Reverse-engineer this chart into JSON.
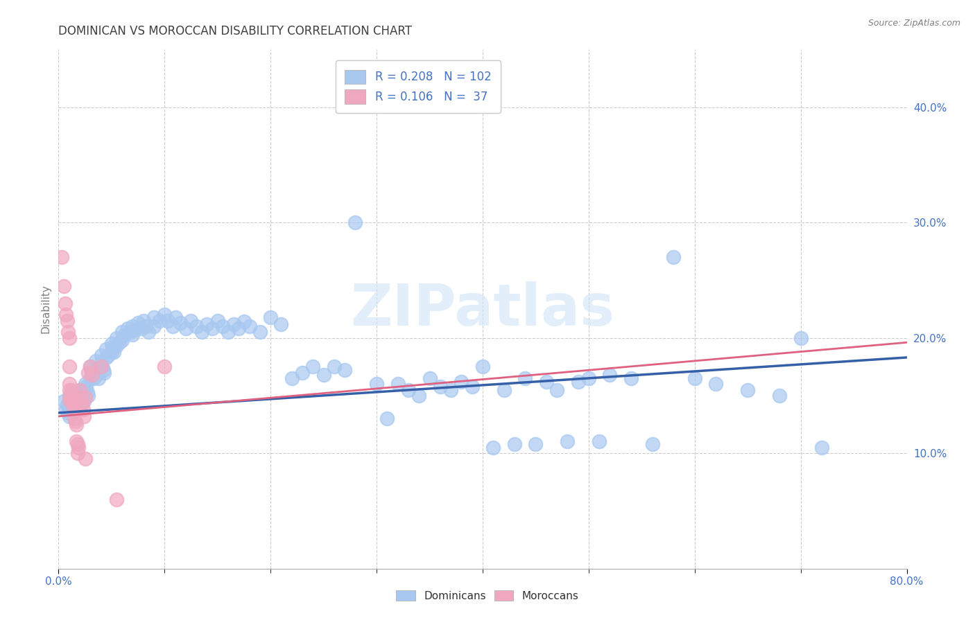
{
  "title": "DOMINICAN VS MOROCCAN DISABILITY CORRELATION CHART",
  "source": "Source: ZipAtlas.com",
  "ylabel": "Disability",
  "watermark": "ZIPatlas",
  "xlim": [
    0.0,
    0.8
  ],
  "ylim": [
    0.0,
    0.45
  ],
  "ytick_vals": [
    0.1,
    0.2,
    0.3,
    0.4
  ],
  "ytick_labels": [
    "10.0%",
    "20.0%",
    "30.0%",
    "40.0%"
  ],
  "dominican_scatter_color": "#a8c8f0",
  "moroccan_scatter_color": "#f0a8c0",
  "dominican_line_color": "#3560a8",
  "moroccan_line_color": "#e06080",
  "background_color": "#ffffff",
  "grid_color": "#cccccc",
  "title_color": "#404040",
  "axis_label_color": "#808080",
  "tick_color": "#4472c4",
  "source_color": "#808080",
  "dominican_line_x": [
    0.0,
    0.8
  ],
  "dominican_line_y": [
    0.135,
    0.183
  ],
  "moroccan_line_x": [
    0.0,
    0.8
  ],
  "moroccan_line_y": [
    0.132,
    0.196
  ],
  "dominican_points": [
    [
      0.005,
      0.145
    ],
    [
      0.007,
      0.138
    ],
    [
      0.008,
      0.142
    ],
    [
      0.009,
      0.135
    ],
    [
      0.01,
      0.15
    ],
    [
      0.01,
      0.143
    ],
    [
      0.01,
      0.138
    ],
    [
      0.01,
      0.132
    ],
    [
      0.011,
      0.148
    ],
    [
      0.012,
      0.145
    ],
    [
      0.012,
      0.14
    ],
    [
      0.013,
      0.137
    ],
    [
      0.014,
      0.143
    ],
    [
      0.015,
      0.15
    ],
    [
      0.015,
      0.145
    ],
    [
      0.015,
      0.14
    ],
    [
      0.015,
      0.135
    ],
    [
      0.016,
      0.148
    ],
    [
      0.017,
      0.145
    ],
    [
      0.018,
      0.142
    ],
    [
      0.018,
      0.138
    ],
    [
      0.019,
      0.145
    ],
    [
      0.02,
      0.155
    ],
    [
      0.02,
      0.15
    ],
    [
      0.02,
      0.145
    ],
    [
      0.02,
      0.14
    ],
    [
      0.021,
      0.153
    ],
    [
      0.022,
      0.15
    ],
    [
      0.023,
      0.148
    ],
    [
      0.024,
      0.145
    ],
    [
      0.025,
      0.16
    ],
    [
      0.025,
      0.155
    ],
    [
      0.026,
      0.158
    ],
    [
      0.027,
      0.153
    ],
    [
      0.028,
      0.15
    ],
    [
      0.03,
      0.175
    ],
    [
      0.03,
      0.165
    ],
    [
      0.031,
      0.17
    ],
    [
      0.032,
      0.168
    ],
    [
      0.033,
      0.165
    ],
    [
      0.035,
      0.18
    ],
    [
      0.035,
      0.172
    ],
    [
      0.036,
      0.168
    ],
    [
      0.038,
      0.165
    ],
    [
      0.04,
      0.185
    ],
    [
      0.04,
      0.178
    ],
    [
      0.041,
      0.175
    ],
    [
      0.042,
      0.172
    ],
    [
      0.043,
      0.17
    ],
    [
      0.045,
      0.19
    ],
    [
      0.045,
      0.183
    ],
    [
      0.047,
      0.185
    ],
    [
      0.05,
      0.195
    ],
    [
      0.05,
      0.188
    ],
    [
      0.051,
      0.192
    ],
    [
      0.052,
      0.188
    ],
    [
      0.055,
      0.2
    ],
    [
      0.055,
      0.193
    ],
    [
      0.057,
      0.196
    ],
    [
      0.06,
      0.205
    ],
    [
      0.06,
      0.198
    ],
    [
      0.062,
      0.202
    ],
    [
      0.065,
      0.208
    ],
    [
      0.068,
      0.205
    ],
    [
      0.07,
      0.21
    ],
    [
      0.07,
      0.203
    ],
    [
      0.072,
      0.207
    ],
    [
      0.075,
      0.213
    ],
    [
      0.078,
      0.208
    ],
    [
      0.08,
      0.215
    ],
    [
      0.082,
      0.21
    ],
    [
      0.085,
      0.205
    ],
    [
      0.09,
      0.218
    ],
    [
      0.09,
      0.21
    ],
    [
      0.095,
      0.215
    ],
    [
      0.1,
      0.22
    ],
    [
      0.103,
      0.215
    ],
    [
      0.108,
      0.21
    ],
    [
      0.11,
      0.218
    ],
    [
      0.115,
      0.213
    ],
    [
      0.12,
      0.208
    ],
    [
      0.125,
      0.215
    ],
    [
      0.13,
      0.21
    ],
    [
      0.135,
      0.205
    ],
    [
      0.14,
      0.212
    ],
    [
      0.145,
      0.208
    ],
    [
      0.15,
      0.215
    ],
    [
      0.155,
      0.21
    ],
    [
      0.16,
      0.205
    ],
    [
      0.165,
      0.212
    ],
    [
      0.17,
      0.208
    ],
    [
      0.175,
      0.214
    ],
    [
      0.18,
      0.21
    ],
    [
      0.19,
      0.205
    ],
    [
      0.2,
      0.218
    ],
    [
      0.21,
      0.212
    ],
    [
      0.22,
      0.165
    ],
    [
      0.23,
      0.17
    ],
    [
      0.24,
      0.175
    ],
    [
      0.25,
      0.168
    ],
    [
      0.26,
      0.175
    ],
    [
      0.27,
      0.172
    ],
    [
      0.28,
      0.3
    ],
    [
      0.3,
      0.16
    ],
    [
      0.31,
      0.13
    ],
    [
      0.32,
      0.16
    ],
    [
      0.33,
      0.155
    ],
    [
      0.34,
      0.15
    ],
    [
      0.35,
      0.165
    ],
    [
      0.36,
      0.158
    ],
    [
      0.37,
      0.155
    ],
    [
      0.38,
      0.162
    ],
    [
      0.39,
      0.158
    ],
    [
      0.4,
      0.175
    ],
    [
      0.41,
      0.105
    ],
    [
      0.42,
      0.155
    ],
    [
      0.43,
      0.108
    ],
    [
      0.44,
      0.165
    ],
    [
      0.45,
      0.108
    ],
    [
      0.46,
      0.162
    ],
    [
      0.47,
      0.155
    ],
    [
      0.48,
      0.11
    ],
    [
      0.49,
      0.162
    ],
    [
      0.5,
      0.165
    ],
    [
      0.51,
      0.11
    ],
    [
      0.52,
      0.168
    ],
    [
      0.54,
      0.165
    ],
    [
      0.56,
      0.108
    ],
    [
      0.58,
      0.27
    ],
    [
      0.6,
      0.165
    ],
    [
      0.62,
      0.16
    ],
    [
      0.65,
      0.155
    ],
    [
      0.68,
      0.15
    ],
    [
      0.7,
      0.2
    ],
    [
      0.72,
      0.105
    ]
  ],
  "moroccan_points": [
    [
      0.003,
      0.27
    ],
    [
      0.005,
      0.245
    ],
    [
      0.006,
      0.23
    ],
    [
      0.007,
      0.22
    ],
    [
      0.008,
      0.215
    ],
    [
      0.009,
      0.205
    ],
    [
      0.01,
      0.2
    ],
    [
      0.01,
      0.175
    ],
    [
      0.01,
      0.16
    ],
    [
      0.01,
      0.155
    ],
    [
      0.01,
      0.148
    ],
    [
      0.011,
      0.145
    ],
    [
      0.012,
      0.155
    ],
    [
      0.013,
      0.148
    ],
    [
      0.014,
      0.143
    ],
    [
      0.015,
      0.145
    ],
    [
      0.015,
      0.138
    ],
    [
      0.015,
      0.13
    ],
    [
      0.016,
      0.128
    ],
    [
      0.017,
      0.125
    ],
    [
      0.017,
      0.11
    ],
    [
      0.018,
      0.108
    ],
    [
      0.018,
      0.1
    ],
    [
      0.019,
      0.105
    ],
    [
      0.02,
      0.155
    ],
    [
      0.021,
      0.148
    ],
    [
      0.022,
      0.143
    ],
    [
      0.023,
      0.138
    ],
    [
      0.024,
      0.132
    ],
    [
      0.025,
      0.148
    ],
    [
      0.025,
      0.095
    ],
    [
      0.028,
      0.17
    ],
    [
      0.03,
      0.175
    ],
    [
      0.032,
      0.168
    ],
    [
      0.04,
      0.175
    ],
    [
      0.055,
      0.06
    ],
    [
      0.1,
      0.175
    ]
  ]
}
